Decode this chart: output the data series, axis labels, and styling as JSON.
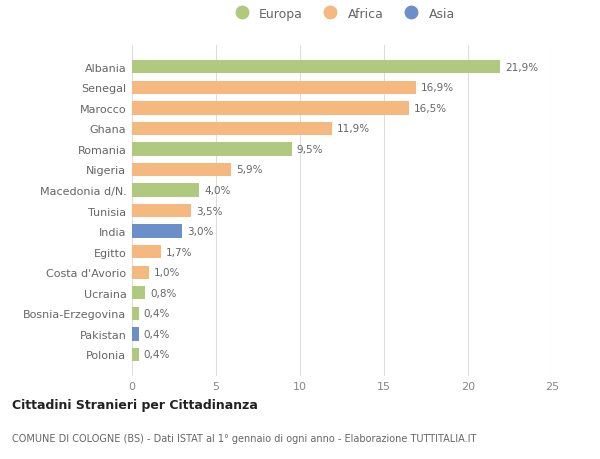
{
  "categories": [
    "Albania",
    "Senegal",
    "Marocco",
    "Ghana",
    "Romania",
    "Nigeria",
    "Macedonia d/N.",
    "Tunisia",
    "India",
    "Egitto",
    "Costa d'Avorio",
    "Ucraina",
    "Bosnia-Erzegovina",
    "Pakistan",
    "Polonia"
  ],
  "values": [
    21.9,
    16.9,
    16.5,
    11.9,
    9.5,
    5.9,
    4.0,
    3.5,
    3.0,
    1.7,
    1.0,
    0.8,
    0.4,
    0.4,
    0.4
  ],
  "labels": [
    "21,9%",
    "16,9%",
    "16,5%",
    "11,9%",
    "9,5%",
    "5,9%",
    "4,0%",
    "3,5%",
    "3,0%",
    "1,7%",
    "1,0%",
    "0,8%",
    "0,4%",
    "0,4%",
    "0,4%"
  ],
  "colors": [
    "#afc97e",
    "#f5b97f",
    "#f5b97f",
    "#f5b97f",
    "#afc97e",
    "#f5b97f",
    "#afc97e",
    "#f5b97f",
    "#6c8fc7",
    "#f5b97f",
    "#f5b97f",
    "#afc97e",
    "#afc97e",
    "#6c8fc7",
    "#afc97e"
  ],
  "legend_labels": [
    "Europa",
    "Africa",
    "Asia"
  ],
  "legend_colors": [
    "#afc97e",
    "#f5b97f",
    "#6c8fc7"
  ],
  "title": "Cittadini Stranieri per Cittadinanza",
  "subtitle": "COMUNE DI COLOGNE (BS) - Dati ISTAT al 1° gennaio di ogni anno - Elaborazione TUTTITALIA.IT",
  "xlim": [
    0,
    25
  ],
  "xticks": [
    0,
    5,
    10,
    15,
    20,
    25
  ],
  "background_color": "#ffffff",
  "bar_alpha": 1.0,
  "grid_color": "#dddddd",
  "label_color": "#666666",
  "tick_color": "#888888"
}
